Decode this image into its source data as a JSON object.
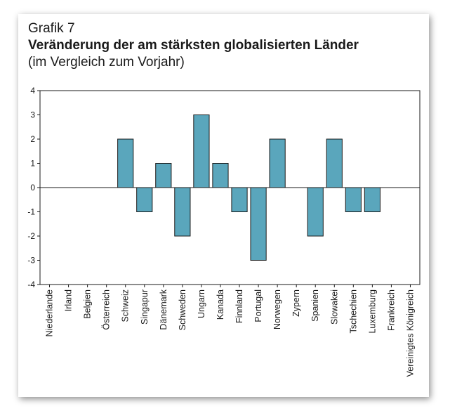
{
  "figure": {
    "label": "Grafik 7",
    "title": "Veränderung der am stärksten globalisierten Länder",
    "subtitle": "(im Vergleich zum Vorjahr)"
  },
  "chart_data": {
    "type": "bar",
    "title": "Veränderung der am stärksten globalisierten Länder",
    "subtitle": "(im Vergleich zum Vorjahr)",
    "xlabel": "",
    "ylabel": "",
    "ylim": [
      -4,
      4
    ],
    "yticks": [
      4,
      3,
      2,
      1,
      0,
      -1,
      -2,
      -3,
      -4
    ],
    "categories": [
      "Niederlande",
      "Irland",
      "Belgien",
      "Österreich",
      "Schweiz",
      "Singapur",
      "Dänemark",
      "Schweden",
      "Ungarn",
      "Kanada",
      "Finnland",
      "Portugal",
      "Norwegen",
      "Zypern",
      "Spanien",
      "Slowakei",
      "Tschechien",
      "Luxemburg",
      "Frankreich",
      "Vereinigtes Königreich"
    ],
    "values": [
      0,
      0,
      0,
      0,
      2,
      -1,
      1,
      -2,
      3,
      1,
      -1,
      -3,
      2,
      0,
      -2,
      2,
      -1,
      -1,
      0,
      0
    ],
    "bar_color": "#5aa6bc",
    "bar_edge_color": "#1a1a1a",
    "grid": false,
    "legend": "none"
  }
}
